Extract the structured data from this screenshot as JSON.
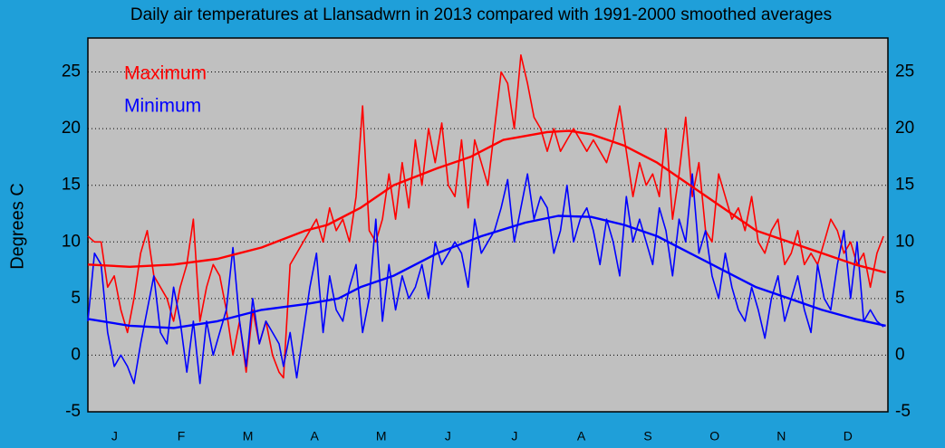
{
  "chart_data": {
    "type": "line",
    "title": "Daily air temperatures at Llansadwrn in 2013 compared with 1991-2000 smoothed averages",
    "y_label": "Degrees  C",
    "categories": [
      "J",
      "F",
      "M",
      "A",
      "M",
      "J",
      "J",
      "A",
      "S",
      "O",
      "N",
      "D"
    ],
    "xlim": [
      1,
      365
    ],
    "ylim": [
      -5,
      28
    ],
    "yticks": [
      -5,
      0,
      5,
      10,
      15,
      20,
      25
    ],
    "grid": true,
    "legend": "top-left",
    "series": [
      {
        "name": "Maximum",
        "color": "#ff0000",
        "x": [
          1,
          4,
          7,
          10,
          13,
          16,
          19,
          22,
          25,
          28,
          31,
          34,
          37,
          40,
          43,
          46,
          49,
          52,
          55,
          58,
          61,
          64,
          67,
          70,
          73,
          76,
          79,
          82,
          85,
          88,
          90,
          93,
          96,
          99,
          102,
          105,
          108,
          111,
          114,
          117,
          120,
          123,
          126,
          129,
          132,
          135,
          138,
          141,
          144,
          147,
          150,
          153,
          156,
          159,
          162,
          165,
          168,
          171,
          174,
          177,
          180,
          183,
          186,
          189,
          192,
          195,
          198,
          201,
          204,
          207,
          210,
          213,
          216,
          219,
          222,
          225,
          228,
          231,
          234,
          237,
          240,
          243,
          246,
          249,
          252,
          255,
          258,
          261,
          264,
          267,
          270,
          273,
          276,
          279,
          282,
          285,
          288,
          291,
          294,
          297,
          300,
          303,
          306,
          309,
          312,
          315,
          318,
          321,
          324,
          327,
          330,
          333,
          336,
          339,
          342,
          345,
          348,
          351,
          354,
          357,
          360,
          363
        ],
        "values": [
          10.5,
          10,
          10,
          6,
          7,
          4,
          2,
          5,
          9,
          11,
          7,
          6,
          5,
          3,
          6,
          8,
          12,
          3,
          6,
          8,
          7,
          4,
          0,
          3,
          -1.5,
          4,
          1,
          3,
          0,
          -1.5,
          -2,
          8,
          9,
          10,
          11,
          12,
          10,
          13,
          11,
          12,
          10,
          14,
          22,
          11,
          10,
          12,
          16,
          12,
          17,
          13,
          19,
          15,
          20,
          17,
          20.5,
          15,
          14,
          19,
          13,
          19,
          17,
          15,
          20,
          25,
          24,
          20,
          26.5,
          24,
          21,
          20,
          18,
          20,
          18,
          19,
          20,
          19,
          18,
          19,
          18,
          17,
          19,
          22,
          18,
          14,
          17,
          15,
          16,
          14,
          20,
          12,
          16,
          21,
          14,
          17,
          11,
          10,
          16,
          14,
          12,
          13,
          11,
          14,
          10,
          9,
          11,
          12,
          8,
          9,
          11,
          8,
          9,
          8,
          10,
          12,
          11,
          9,
          10,
          8,
          9,
          6,
          9,
          10.5
        ]
      },
      {
        "name": "Minimum",
        "color": "#0000ff",
        "x": [
          1,
          4,
          7,
          10,
          13,
          16,
          19,
          22,
          25,
          28,
          31,
          34,
          37,
          40,
          43,
          46,
          49,
          52,
          55,
          58,
          61,
          64,
          67,
          70,
          73,
          76,
          79,
          82,
          85,
          88,
          90,
          93,
          96,
          99,
          102,
          105,
          108,
          111,
          114,
          117,
          120,
          123,
          126,
          129,
          132,
          135,
          138,
          141,
          144,
          147,
          150,
          153,
          156,
          159,
          162,
          165,
          168,
          171,
          174,
          177,
          180,
          183,
          186,
          189,
          192,
          195,
          198,
          201,
          204,
          207,
          210,
          213,
          216,
          219,
          222,
          225,
          228,
          231,
          234,
          237,
          240,
          243,
          246,
          249,
          252,
          255,
          258,
          261,
          264,
          267,
          270,
          273,
          276,
          279,
          282,
          285,
          288,
          291,
          294,
          297,
          300,
          303,
          306,
          309,
          312,
          315,
          318,
          321,
          324,
          327,
          330,
          333,
          336,
          339,
          342,
          345,
          348,
          351,
          354,
          357,
          360,
          363
        ],
        "values": [
          3,
          9,
          8,
          2,
          -1,
          0,
          -1,
          -2.5,
          1,
          4,
          7,
          2,
          1,
          6,
          3,
          -1.5,
          3,
          -2.5,
          3,
          0,
          2,
          4,
          9.5,
          3,
          -1,
          5,
          1,
          3,
          2,
          1,
          -1,
          2,
          -2,
          2,
          6,
          9,
          2,
          7,
          4,
          3,
          6,
          8,
          2,
          5,
          12,
          3,
          8,
          4,
          7,
          5,
          6,
          8,
          5,
          10,
          8,
          9,
          10,
          9,
          6,
          12,
          9,
          10,
          11,
          13,
          15.5,
          10,
          13,
          16,
          12,
          14,
          13,
          9,
          11,
          15,
          10,
          12,
          13,
          11,
          8,
          12,
          10,
          7,
          14,
          10,
          12,
          10,
          8,
          13,
          11,
          7,
          12,
          10,
          16,
          9,
          11,
          7,
          5,
          9,
          6,
          4,
          3,
          6,
          4,
          1.5,
          5,
          7,
          3,
          5,
          7,
          4,
          2,
          8,
          5,
          4,
          8,
          11,
          5,
          10,
          3,
          4,
          3,
          2.5
        ]
      },
      {
        "color": "#ff0000",
        "x": [
          1,
          20,
          40,
          60,
          80,
          100,
          110,
          125,
          140,
          160,
          175,
          190,
          210,
          220,
          230,
          245,
          260,
          275,
          290,
          305,
          320,
          335,
          350,
          364
        ],
        "values": [
          8,
          7.8,
          8,
          8.5,
          9.5,
          11,
          11.5,
          13,
          15,
          16.5,
          17.5,
          19,
          19.7,
          19.8,
          19.5,
          18.5,
          17,
          15,
          13,
          11,
          10,
          9,
          8,
          7.3
        ]
      },
      {
        "color": "#0000ff",
        "x": [
          1,
          20,
          40,
          60,
          80,
          100,
          115,
          125,
          140,
          160,
          180,
          200,
          215,
          230,
          245,
          260,
          275,
          290,
          305,
          320,
          335,
          350,
          364
        ],
        "values": [
          3.2,
          2.6,
          2.4,
          3,
          4,
          4.5,
          5,
          6,
          7,
          9,
          10.5,
          11.7,
          12.3,
          12.2,
          11.5,
          10.5,
          9,
          7.5,
          6,
          5,
          4,
          3.2,
          2.6
        ]
      }
    ]
  }
}
